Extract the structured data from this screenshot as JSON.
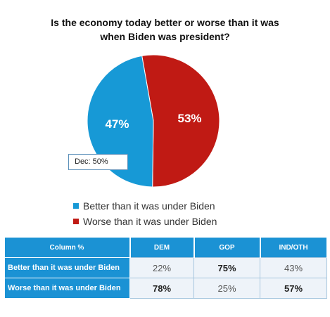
{
  "title_lines": [
    "Is the economy today better or worse than it was",
    "when Biden was president?"
  ],
  "colors": {
    "better": "#1799d6",
    "worse": "#c01a14",
    "header": "#1b92d4"
  },
  "callout": "Dec: 50%",
  "chart_data": {
    "type": "pie",
    "title": "Is the economy today better or worse than it was when Biden was president?",
    "slices": [
      {
        "label": "Better than it was under Biden",
        "value": 47,
        "display": "47%"
      },
      {
        "label": "Worse than it was under Biden",
        "value": 53,
        "display": "53%"
      }
    ],
    "legend_position": "bottom"
  },
  "table": {
    "headers": [
      "Column %",
      "DEM",
      "GOP",
      "IND/OTH"
    ],
    "rows": [
      {
        "label": "Better than it was under Biden",
        "values": [
          "22%",
          "75%",
          "43%"
        ],
        "bold": [
          false,
          true,
          false
        ]
      },
      {
        "label": "Worse than it was under Biden",
        "values": [
          "78%",
          "25%",
          "57%"
        ],
        "bold": [
          true,
          false,
          true
        ]
      }
    ]
  }
}
